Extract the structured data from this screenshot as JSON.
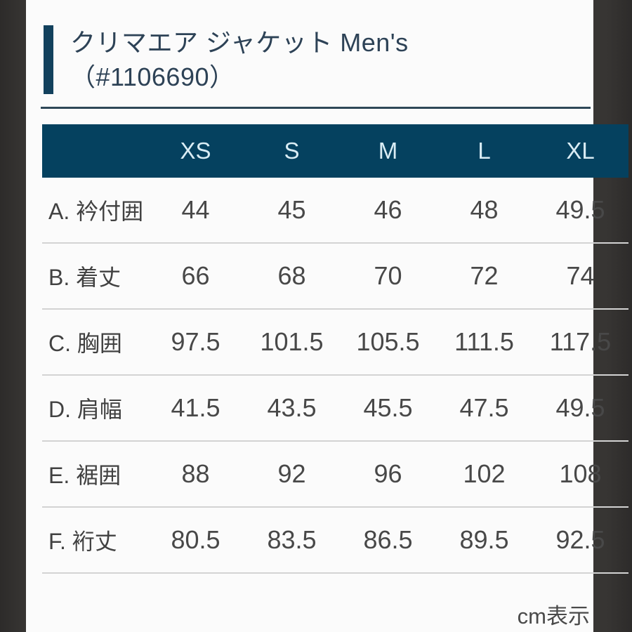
{
  "header": {
    "title_line1": "クリマエア ジャケット Men's",
    "title_line2": "（#1106690）"
  },
  "size_table": {
    "corner_label": "",
    "columns": [
      "XS",
      "S",
      "M",
      "L",
      "XL"
    ],
    "rows": [
      {
        "label": "A. 衿付囲",
        "values": [
          "44",
          "45",
          "46",
          "48",
          "49.5"
        ]
      },
      {
        "label": "B. 着丈",
        "values": [
          "66",
          "68",
          "70",
          "72",
          "74"
        ]
      },
      {
        "label": "C. 胸囲",
        "values": [
          "97.5",
          "101.5",
          "105.5",
          "111.5",
          "117.5"
        ]
      },
      {
        "label": "D. 肩幅",
        "values": [
          "41.5",
          "43.5",
          "45.5",
          "47.5",
          "49.5"
        ]
      },
      {
        "label": "E. 裾囲",
        "values": [
          "88",
          "92",
          "96",
          "102",
          "108"
        ]
      },
      {
        "label": "F. 裄丈",
        "values": [
          "80.5",
          "83.5",
          "86.5",
          "89.5",
          "92.5"
        ]
      }
    ]
  },
  "footer": {
    "unit_note": "cm表示"
  },
  "colors": {
    "header_bg": "#05415f",
    "header_text": "#d9ecf4",
    "accent": "#12415d",
    "rule": "#2e4757",
    "title_text": "#2d4256",
    "panel_bg": "#fbfbfb",
    "frame": "#373533",
    "separator": "#d3d3d3"
  }
}
